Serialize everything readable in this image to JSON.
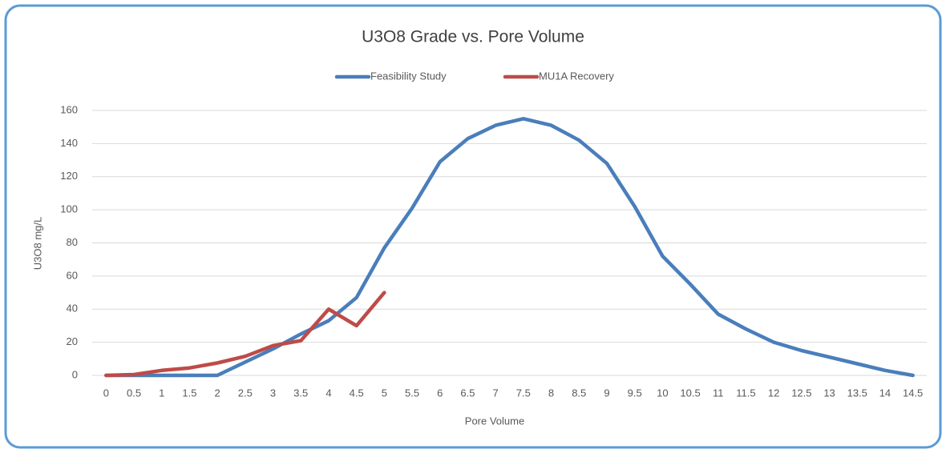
{
  "chart_data": {
    "type": "line",
    "title": "U3O8 Grade vs. Pore Volume",
    "x_label": "Pore Volume",
    "y_label": "U3O8 mg/L",
    "categories": [
      "0",
      "0.5",
      "1",
      "1.5",
      "2",
      "2.5",
      "3",
      "3.5",
      "4",
      "4.5",
      "5",
      "5.5",
      "6",
      "6.5",
      "7",
      "7.5",
      "8",
      "8.5",
      "9",
      "9.5",
      "10",
      "10.5",
      "11",
      "11.5",
      "12",
      "12.5",
      "13",
      "13.5",
      "14",
      "14.5"
    ],
    "series": [
      {
        "name": "Feasibility Study",
        "color": "#4a7ebb",
        "values": [
          0,
          0,
          0,
          0,
          0,
          8,
          16,
          25,
          33,
          47,
          77,
          101,
          129,
          143,
          151,
          155,
          151,
          142,
          128,
          102,
          72,
          55,
          37,
          28,
          20,
          15,
          11,
          7,
          3,
          0
        ]
      },
      {
        "name": "MU1A Recovery",
        "color": "#be4b48",
        "values": [
          0,
          0.5,
          3,
          4.5,
          7.5,
          11.5,
          18,
          21,
          40,
          30,
          50,
          null,
          null,
          null,
          null,
          null,
          null,
          null,
          null,
          null,
          null,
          null,
          null,
          null,
          null,
          null,
          null,
          null,
          null,
          null
        ]
      }
    ],
    "ylim": [
      0,
      160
    ],
    "yticks": [
      0,
      20,
      40,
      60,
      80,
      100,
      120,
      140,
      160
    ],
    "grid": true,
    "legend": "top"
  }
}
